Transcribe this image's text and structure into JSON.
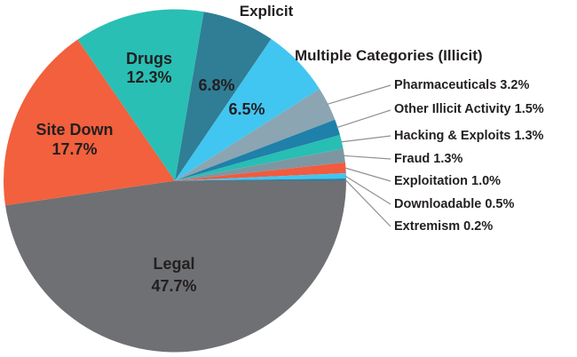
{
  "figure": {
    "background_color": "#ffffff",
    "text_color": "#231F20",
    "leader_line_color": "#8f9194"
  },
  "chart_data": {
    "type": "pie",
    "title": "",
    "rotation_deg": 9.72,
    "legend_position": "none",
    "slices": [
      {
        "label": "Explicit",
        "value": 6.8,
        "color": "#2F7E95"
      },
      {
        "label": "Multiple Categories (Illicit)",
        "value": 6.5,
        "color": "#41C6F1"
      },
      {
        "label": "Pharmaceuticals",
        "value": 3.2,
        "color": "#8BA5B2"
      },
      {
        "label": "Other Illicit Activity",
        "value": 1.5,
        "color": "#1F80A9"
      },
      {
        "label": "Hacking & Exploits",
        "value": 1.3,
        "color": "#27BEB4"
      },
      {
        "label": "Fraud",
        "value": 1.3,
        "color": "#7D97A2"
      },
      {
        "label": "Exploitation",
        "value": 1.0,
        "color": "#F15B40"
      },
      {
        "label": "Downloadable",
        "value": 0.5,
        "color": "#41C6F1"
      },
      {
        "label": "Extremism",
        "value": 0.2,
        "color": "#2E7FA0"
      },
      {
        "label": "Legal",
        "value": 47.7,
        "color": "#6F7073"
      },
      {
        "label": "Site Down",
        "value": 17.7,
        "color": "#F2603D"
      },
      {
        "label": "Drugs",
        "value": 12.3,
        "color": "#29BFB4"
      }
    ]
  },
  "labels": {
    "explicit": "Explicit",
    "explicit_pct": "6.8%",
    "multiple": "Multiple Categories (Illicit)",
    "multiple_pct": "6.5%",
    "drugs": {
      "name": "Drugs",
      "pct": "12.3%"
    },
    "site_down": {
      "name": "Site Down",
      "pct": "17.7%"
    },
    "legal": {
      "name": "Legal",
      "pct": "47.7%"
    }
  },
  "callouts": [
    {
      "text": "Pharmaceuticals 3.2%"
    },
    {
      "text": "Other Illicit Activity 1.5%"
    },
    {
      "text": "Hacking & Exploits 1.3%"
    },
    {
      "text": "Fraud 1.3%"
    },
    {
      "text": "Exploitation 1.0%"
    },
    {
      "text": "Downloadable 0.5%"
    },
    {
      "text": "Extremism 0.2%"
    }
  ]
}
